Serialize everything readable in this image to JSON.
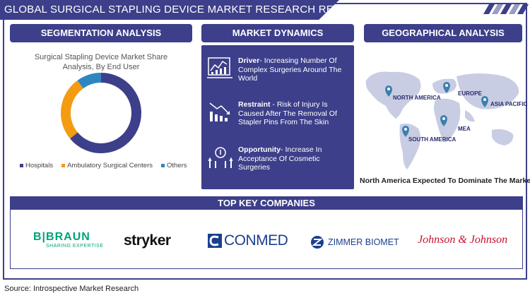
{
  "header": {
    "title": "GLOBAL SURGICAL STAPLING DEVICE  MARKET RESEARCH REPORT"
  },
  "segmentation": {
    "heading": "SEGMENTATION ANALYSIS",
    "chart_title_line1": "Surgical Stapling Device Market Share",
    "chart_title_line2": "Analysis, By End User"
  },
  "chart_data": {
    "type": "pie",
    "title": "Surgical Stapling Device Market Share Analysis, By End User",
    "categories": [
      "Hospitals",
      "Ambulatory Surgical Centers",
      "Others"
    ],
    "values": [
      64,
      26,
      10
    ],
    "colors": [
      "#3d3f8a",
      "#f39c12",
      "#2e86c1"
    ],
    "legend_position": "bottom"
  },
  "dynamics": {
    "heading": "MARKET DYNAMICS",
    "items": [
      {
        "label": "Driver",
        "text": "- Increasing Number Of Complex Surgeries Around The World",
        "icon": "chart-analysis-icon"
      },
      {
        "label": "Restraint",
        "text": " - Risk of Injury Is Caused After The Removal Of Stapler Pins From The Skin",
        "icon": "declining-bars-icon"
      },
      {
        "label": "Opportunity",
        "text": "- Increase In Acceptance Of Cosmetic Surgeries",
        "icon": "growth-idea-icon"
      }
    ]
  },
  "geography": {
    "heading": "GEOGRAPHICAL ANALYSIS",
    "regions": [
      "NORTH AMERICA",
      "EUROPE",
      "ASIA PACIFIC",
      "MEA",
      "SOUTH AMERICA"
    ],
    "caption": "North America Expected To Dominate The Market",
    "pin_color": "#3b7fb0"
  },
  "companies": {
    "heading": "TOP KEY COMPANIES",
    "bbraun": {
      "name": "B|BRAUN",
      "tagline": "SHARING EXPERTISE",
      "color": "#00a37a"
    },
    "stryker": {
      "name": "stryker"
    },
    "conmed": {
      "name": "CONMED"
    },
    "zimmer": {
      "name": "ZIMMER BIOMET"
    },
    "jnj": {
      "name": "Johnson & Johnson",
      "color": "#c8102e"
    }
  },
  "source": "Source: Introspective Market Research"
}
